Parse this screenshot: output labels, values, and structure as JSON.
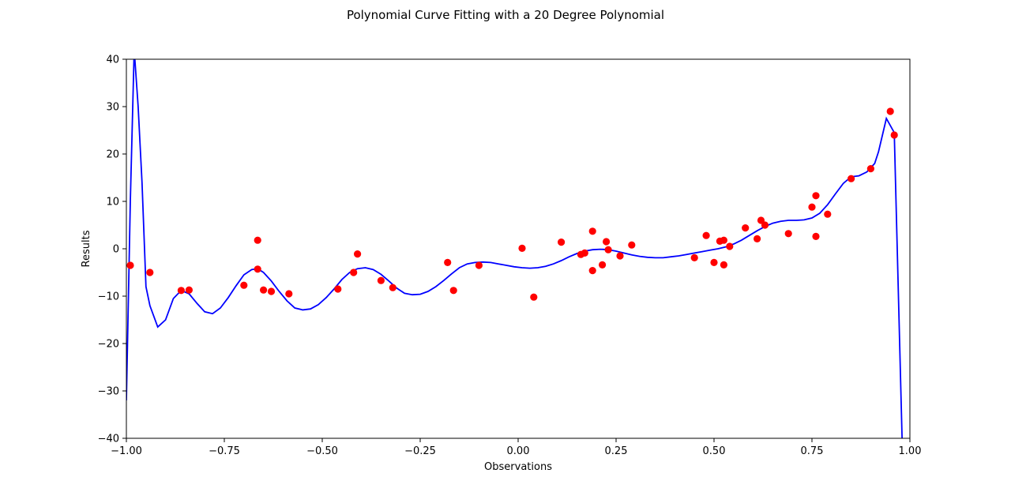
{
  "chart_data": {
    "type": "scatter",
    "title": "Polynomial Curve Fitting with a 20 Degree Polynomial",
    "xlabel": "Observations",
    "ylabel": "Results",
    "xlim": [
      -1.0,
      1.0
    ],
    "ylim": [
      -40,
      40
    ],
    "xticks": [
      "−1.00",
      "−0.75",
      "−0.50",
      "−0.25",
      "0.00",
      "0.25",
      "0.50",
      "0.75",
      "1.00"
    ],
    "xtick_values": [
      -1.0,
      -0.75,
      -0.5,
      -0.25,
      0.0,
      0.25,
      0.5,
      0.75,
      1.0
    ],
    "yticks": [
      "−40",
      "−30",
      "−20",
      "−10",
      "0",
      "10",
      "20",
      "30",
      "40"
    ],
    "ytick_values": [
      -40,
      -30,
      -20,
      -10,
      0,
      10,
      20,
      30,
      40
    ],
    "grid": false,
    "series": [
      {
        "style": "points",
        "color": "#ff0000",
        "x": [
          -0.99,
          -0.94,
          -0.86,
          -0.84,
          -0.7,
          -0.665,
          -0.665,
          -0.65,
          -0.63,
          -0.585,
          -0.46,
          -0.42,
          -0.41,
          -0.35,
          -0.32,
          -0.18,
          -0.165,
          -0.1,
          0.01,
          0.04,
          0.11,
          0.16,
          0.17,
          0.19,
          0.19,
          0.215,
          0.225,
          0.23,
          0.26,
          0.29,
          0.45,
          0.48,
          0.5,
          0.515,
          0.525,
          0.525,
          0.54,
          0.58,
          0.61,
          0.62,
          0.63,
          0.69,
          0.75,
          0.76,
          0.76,
          0.79,
          0.85,
          0.9,
          0.95,
          0.96
        ],
        "y": [
          -3.5,
          -5.0,
          -8.8,
          -8.7,
          -7.7,
          1.8,
          -4.3,
          -8.7,
          -9.0,
          -9.5,
          -8.5,
          -5.0,
          -1.1,
          -6.7,
          -8.2,
          -2.9,
          -8.8,
          -3.5,
          0.1,
          -10.2,
          1.4,
          -1.2,
          -0.9,
          3.7,
          -4.6,
          -3.4,
          1.5,
          -0.2,
          -1.5,
          0.8,
          -1.9,
          2.8,
          -2.9,
          1.6,
          1.8,
          -3.4,
          0.5,
          4.4,
          2.1,
          6.0,
          5.0,
          3.2,
          8.8,
          11.2,
          2.6,
          7.3,
          14.8,
          16.9,
          29.0,
          24.0
        ]
      },
      {
        "style": "line",
        "color": "#0000ff",
        "x": [
          -1.0,
          -0.99,
          -0.98,
          -0.97,
          -0.96,
          -0.95,
          -0.94,
          -0.92,
          -0.9,
          -0.88,
          -0.86,
          -0.84,
          -0.82,
          -0.8,
          -0.78,
          -0.76,
          -0.74,
          -0.72,
          -0.7,
          -0.68,
          -0.665,
          -0.65,
          -0.63,
          -0.61,
          -0.59,
          -0.57,
          -0.55,
          -0.53,
          -0.51,
          -0.49,
          -0.47,
          -0.45,
          -0.43,
          -0.41,
          -0.39,
          -0.37,
          -0.35,
          -0.33,
          -0.31,
          -0.29,
          -0.27,
          -0.25,
          -0.23,
          -0.21,
          -0.19,
          -0.17,
          -0.15,
          -0.13,
          -0.11,
          -0.09,
          -0.07,
          -0.05,
          -0.03,
          -0.01,
          0.01,
          0.03,
          0.05,
          0.07,
          0.09,
          0.11,
          0.13,
          0.15,
          0.17,
          0.19,
          0.21,
          0.23,
          0.25,
          0.27,
          0.29,
          0.31,
          0.33,
          0.35,
          0.37,
          0.39,
          0.41,
          0.43,
          0.45,
          0.47,
          0.49,
          0.51,
          0.53,
          0.55,
          0.57,
          0.59,
          0.61,
          0.63,
          0.65,
          0.67,
          0.69,
          0.71,
          0.73,
          0.75,
          0.77,
          0.79,
          0.81,
          0.83,
          0.85,
          0.87,
          0.89,
          0.91,
          0.92,
          0.94,
          0.96,
          0.98
        ],
        "y": [
          -32.0,
          10.0,
          42.0,
          30.0,
          14.0,
          -8.0,
          -12.0,
          -16.5,
          -15.0,
          -10.5,
          -8.8,
          -9.5,
          -11.5,
          -13.3,
          -13.7,
          -12.5,
          -10.3,
          -7.8,
          -5.5,
          -4.4,
          -4.2,
          -5.0,
          -6.8,
          -9.0,
          -11.0,
          -12.5,
          -12.9,
          -12.7,
          -11.8,
          -10.3,
          -8.5,
          -6.5,
          -5.0,
          -4.2,
          -4.0,
          -4.4,
          -5.4,
          -6.8,
          -8.3,
          -9.4,
          -9.7,
          -9.6,
          -9.0,
          -8.0,
          -6.7,
          -5.3,
          -4.0,
          -3.2,
          -2.9,
          -2.8,
          -2.9,
          -3.2,
          -3.5,
          -3.8,
          -4.0,
          -4.1,
          -4.0,
          -3.7,
          -3.2,
          -2.5,
          -1.7,
          -1.0,
          -0.5,
          -0.2,
          -0.1,
          -0.2,
          -0.5,
          -0.9,
          -1.3,
          -1.6,
          -1.8,
          -1.9,
          -1.9,
          -1.7,
          -1.5,
          -1.2,
          -0.9,
          -0.6,
          -0.3,
          0.0,
          0.4,
          1.0,
          1.8,
          2.8,
          3.8,
          4.7,
          5.4,
          5.8,
          6.0,
          6.0,
          6.1,
          6.5,
          7.5,
          9.3,
          11.6,
          13.8,
          15.2,
          15.4,
          16.2,
          18.0,
          20.5,
          27.5,
          24.5,
          -40.0
        ]
      }
    ]
  }
}
